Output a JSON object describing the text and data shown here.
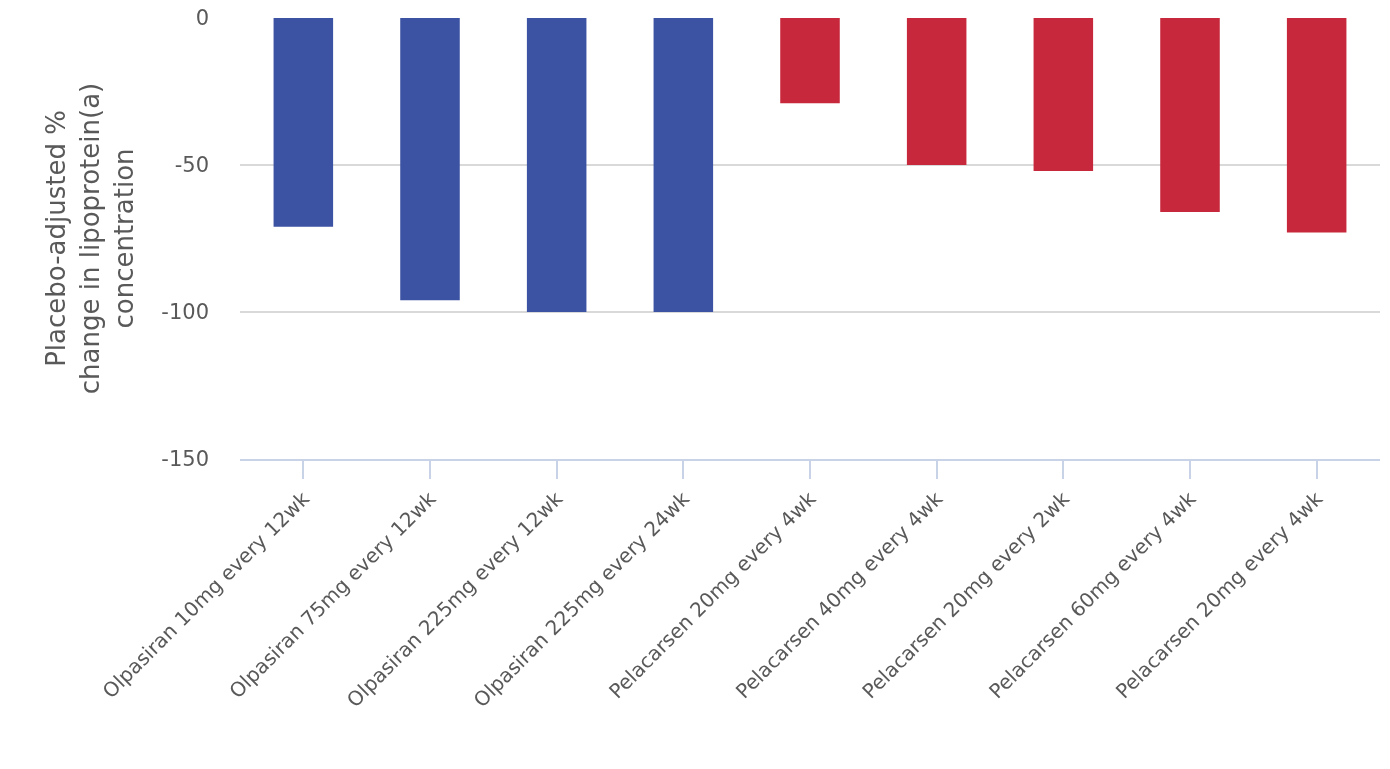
{
  "chart_data": {
    "type": "bar",
    "ylabel": "Placebo-adjusted %\nchange in lipoprotein(a)\nconcentration",
    "categories": [
      "Olpasiran 10mg every 12wk",
      "Olpasiran 75mg every 12wk",
      "Olpasiran 225mg every 12wk",
      "Olpasiran 225mg every 24wk",
      "Pelacarsen 20mg every 4wk",
      "Pelacarsen 40mg every 4wk",
      "Pelacarsen 20mg every 2wk",
      "Pelacarsen 60mg every 4wk",
      "Pelacarsen 20mg every 4wk"
    ],
    "values": [
      -71,
      -96,
      -100,
      -100,
      -29,
      -50,
      -52,
      -66,
      -73
    ],
    "colors": [
      "#3c52a3",
      "#3c52a3",
      "#3c52a3",
      "#3c52a3",
      "#c8283b",
      "#c8283b",
      "#c8283b",
      "#c8283b",
      "#c8283b"
    ],
    "ylim": [
      -150,
      0
    ],
    "yticks": [
      -150,
      -100,
      -50,
      0
    ],
    "grid": "y"
  }
}
